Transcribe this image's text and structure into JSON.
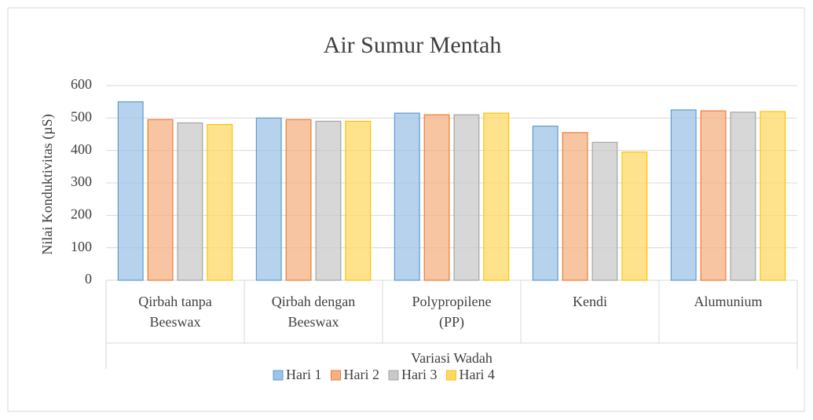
{
  "chart_data": {
    "type": "bar",
    "title": "Air Sumur Mentah",
    "y_label": "Nilai Konduktivitas (µS)",
    "x_label": "Variasi Wadah",
    "categories": [
      [
        "Qirbah tanpa",
        "Beeswax"
      ],
      [
        "Qirbah dengan",
        "Beeswax"
      ],
      [
        "Polypropilene",
        "(PP)"
      ],
      [
        "Kendi"
      ],
      [
        "Alumunium"
      ]
    ],
    "series": [
      {
        "name": "Hari 1",
        "color": "#9dc3e6",
        "values": [
          550,
          500,
          515,
          475,
          525
        ]
      },
      {
        "name": "Hari 2",
        "color": "#f4b183",
        "values": [
          495,
          495,
          510,
          455,
          522
        ]
      },
      {
        "name": "Hari 3",
        "color": "#c9c9c9",
        "values": [
          485,
          490,
          510,
          425,
          518
        ]
      },
      {
        "name": "Hari 4",
        "color": "#ffd966",
        "values": [
          480,
          490,
          515,
          395,
          520
        ]
      }
    ],
    "ylim": [
      0,
      600
    ],
    "yticks": [
      0,
      100,
      200,
      300,
      400,
      500,
      600
    ],
    "grid": true,
    "legend": "bottom"
  }
}
